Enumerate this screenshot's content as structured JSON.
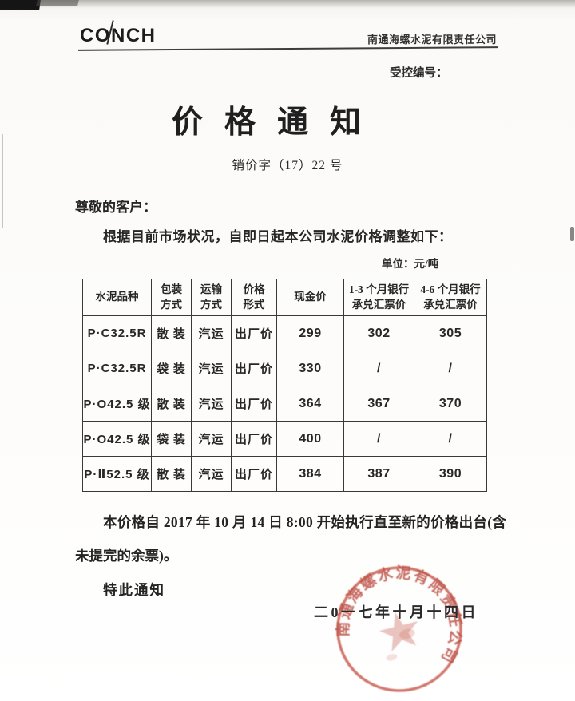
{
  "page": {
    "header": {
      "logo": "CONCH",
      "company": "南通海螺水泥有限责任公司",
      "controlled_no_label": "受控编号："
    },
    "title": "价格通知",
    "doc_no": "销价字（17）22 号",
    "greeting": "尊敬的客户：",
    "intro": "根据目前市场状况，自即日起本公司水泥价格调整如下：",
    "unit_label": "单位：元/吨",
    "table": {
      "headers": [
        "水泥品种",
        "包装\n方式",
        "运输\n方式",
        "价格\n形式",
        "现金价",
        "1-3 个月银行\n承兑汇票价",
        "4-6 个月银行\n承兑汇票价"
      ],
      "rows": [
        [
          "P·C32.5R",
          "散 装",
          "汽运",
          "出厂价",
          "299",
          "302",
          "305"
        ],
        [
          "P·C32.5R",
          "袋 装",
          "汽运",
          "出厂价",
          "330",
          "/",
          "/"
        ],
        [
          "P·O42.5 级",
          "散 装",
          "汽运",
          "出厂价",
          "364",
          "367",
          "370"
        ],
        [
          "P·O42.5 级",
          "袋 装",
          "汽运",
          "出厂价",
          "400",
          "/",
          "/"
        ],
        [
          "P·Ⅱ52.5 级",
          "散 装",
          "汽运",
          "出厂价",
          "384",
          "387",
          "390"
        ]
      ]
    },
    "footer": {
      "para_line1": "本价格自 2017 年 10 月 14 日 8:00 开始执行直至新的价格出台(含",
      "para_line2": "未提完的余票)。",
      "notice": "特此通知",
      "date": "二0一七年十月十四日",
      "stamp_text": "南通海螺水泥有限责任公司",
      "stamp_color": "#bb3a2a"
    }
  }
}
